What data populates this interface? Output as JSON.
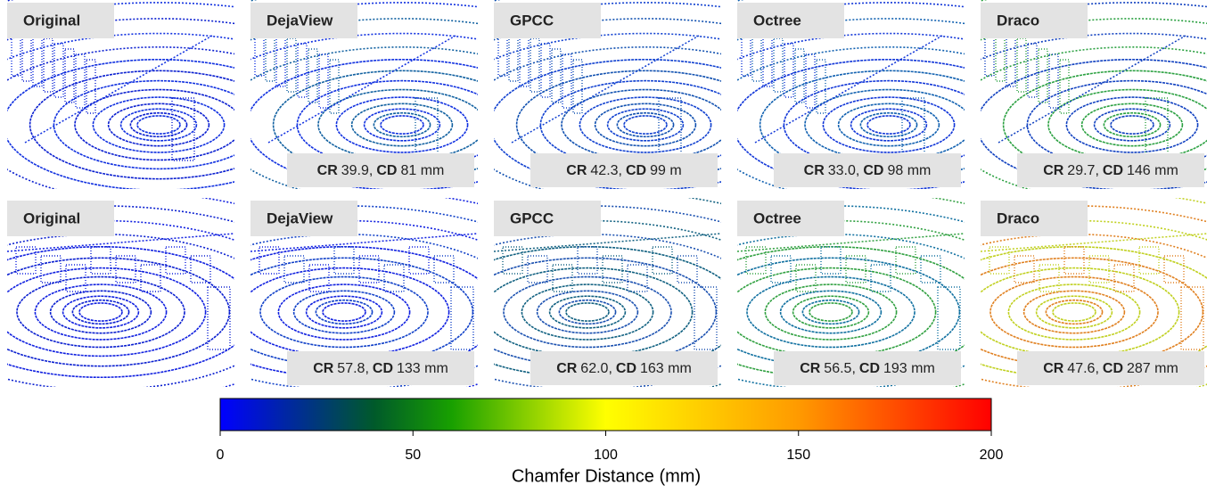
{
  "rows": [
    [
      {
        "method": "Original"
      },
      {
        "method": "DejaView",
        "caption": {
          "cr_label": "CR",
          "cr": "39.9,",
          "cd_label": "CD",
          "cd": "81 mm"
        }
      },
      {
        "method": "GPCC",
        "caption": {
          "cr_label": "CR",
          "cr": "42.3,",
          "cd_label": "CD",
          "cd": "99 m"
        }
      },
      {
        "method": "Octree",
        "caption": {
          "cr_label": "CR",
          "cr": "33.0,",
          "cd_label": "CD",
          "cd": "98 mm"
        }
      },
      {
        "method": "Draco",
        "caption": {
          "cr_label": "CR",
          "cr": "29.7,",
          "cd_label": "CD",
          "cd": "146 mm"
        }
      }
    ],
    [
      {
        "method": "Original"
      },
      {
        "method": "DejaView",
        "caption": {
          "cr_label": "CR",
          "cr": "57.8,",
          "cd_label": "CD",
          "cd": "133 mm"
        }
      },
      {
        "method": "GPCC",
        "caption": {
          "cr_label": "CR",
          "cr": "62.0,",
          "cd_label": "CD",
          "cd": "163 mm"
        }
      },
      {
        "method": "Octree",
        "caption": {
          "cr_label": "CR",
          "cr": "56.5,",
          "cd_label": "CD",
          "cd": "193 mm"
        }
      },
      {
        "method": "Draco",
        "caption": {
          "cr_label": "CR",
          "cr": "47.6,",
          "cd_label": "CD",
          "cd": "287 mm"
        }
      }
    ]
  ],
  "colorbar": {
    "label": "Chamfer Distance (mm)",
    "xlim": [
      0,
      200
    ],
    "xticks": [
      0,
      50,
      100,
      150,
      200
    ],
    "colormap": [
      {
        "value": 0,
        "color": "#0000ff"
      },
      {
        "value": 40,
        "color": "#005a2a"
      },
      {
        "value": 60,
        "color": "#18a000"
      },
      {
        "value": 100,
        "color": "#ffff00"
      },
      {
        "value": 150,
        "color": "#ff9a00"
      },
      {
        "value": 200,
        "color": "#ff0000"
      }
    ]
  }
}
